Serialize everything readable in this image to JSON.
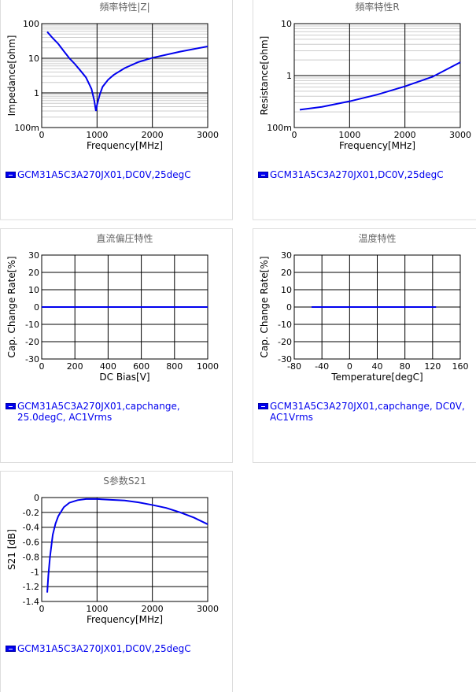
{
  "chart_data": [
    {
      "type": "line",
      "title": "頻率特性|Z|",
      "xlabel": "Frequency[MHz]",
      "ylabel": "Impedance[ohm]",
      "ylog": true,
      "grid": true,
      "xlim": [
        0,
        3000
      ],
      "xticks": [
        0,
        1000,
        2000,
        3000
      ],
      "ylim": [
        0.1,
        100
      ],
      "yticks": [
        {
          "value": 0.1,
          "label": "100m"
        },
        1,
        10,
        100
      ],
      "minor_yticks": [
        0.2,
        0.3,
        0.4,
        0.5,
        0.6,
        0.7,
        0.8,
        0.9,
        2,
        3,
        4,
        5,
        6,
        7,
        8,
        9,
        20,
        30,
        40,
        50,
        60,
        70,
        80,
        90
      ],
      "x": [
        100,
        200,
        300,
        400,
        500,
        600,
        700,
        800,
        900,
        950,
        980,
        1000,
        1050,
        1100,
        1200,
        1300,
        1500,
        1750,
        2000,
        2500,
        3000
      ],
      "series": [
        {
          "name": "GCM31A5C3A270JX01,DC0V,25degC",
          "color": "#0000ee",
          "values": [
            58,
            38,
            26,
            16,
            10,
            6.8,
            4.4,
            2.8,
            1.3,
            0.6,
            0.3,
            0.45,
            0.9,
            1.5,
            2.4,
            3.3,
            5.2,
            7.8,
            10.3,
            15.5,
            22
          ]
        }
      ]
    },
    {
      "type": "line",
      "title": "頻率特性R",
      "xlabel": "Frequency[MHz]",
      "ylabel": "Resistance[ohm]",
      "ylog": true,
      "grid": true,
      "xlim": [
        0,
        3000
      ],
      "xticks": [
        0,
        1000,
        2000,
        3000
      ],
      "ylim": [
        0.1,
        10
      ],
      "yticks": [
        {
          "value": 0.1,
          "label": "100m"
        },
        1,
        10
      ],
      "minor_yticks": [
        0.2,
        0.3,
        0.4,
        0.5,
        0.6,
        0.7,
        0.8,
        0.9,
        2,
        3,
        4,
        5,
        6,
        7,
        8,
        9
      ],
      "x": [
        100,
        500,
        1000,
        1500,
        2000,
        2500,
        3000
      ],
      "series": [
        {
          "name": "GCM31A5C3A270JX01,DC0V,25degC",
          "color": "#0000ee",
          "values": [
            0.22,
            0.25,
            0.32,
            0.43,
            0.62,
            0.95,
            1.8
          ]
        }
      ]
    },
    {
      "type": "line",
      "title": "直流偏圧特性",
      "xlabel": "DC Bias[V]",
      "ylabel": "Cap. Change Rate[%]",
      "ylog": false,
      "grid": true,
      "xlim": [
        0,
        1000
      ],
      "xticks": [
        0,
        200,
        400,
        600,
        800,
        1000
      ],
      "ylim": [
        -30,
        30
      ],
      "yticks": [
        -30,
        -20,
        -10,
        0,
        10,
        20,
        30
      ],
      "minor_yticks": [],
      "x": [
        0,
        1000
      ],
      "series": [
        {
          "name": "GCM31A5C3A270JX01,capchange, 25.0degC, AC1Vrms",
          "color": "#0000ee",
          "values": [
            0,
            0
          ]
        }
      ]
    },
    {
      "type": "line",
      "title": "温度特性",
      "xlabel": "Temperature[degC]",
      "ylabel": "Cap. Change Rate[%]",
      "ylog": false,
      "grid": true,
      "xlim": [
        -80,
        160
      ],
      "xticks": [
        -80,
        -40,
        0,
        40,
        80,
        120,
        160
      ],
      "ylim": [
        -30,
        30
      ],
      "yticks": [
        -30,
        -20,
        -10,
        0,
        10,
        20,
        30
      ],
      "minor_yticks": [],
      "x": [
        -55,
        125
      ],
      "series": [
        {
          "name": "GCM31A5C3A270JX01,capchange, DC0V, AC1Vrms",
          "color": "#0000ee",
          "values": [
            0,
            0
          ]
        }
      ]
    },
    {
      "type": "line",
      "title": "S参数S21",
      "xlabel": "Frequency[MHz]",
      "ylabel": "S21 [dB]",
      "ylog": false,
      "grid": true,
      "xlim": [
        0,
        3000
      ],
      "xticks": [
        0,
        1000,
        2000,
        3000
      ],
      "ylim": [
        -1.4,
        0
      ],
      "yticks": [
        -1.4,
        -1.2,
        -1,
        -0.8,
        -0.6,
        -0.4,
        -0.2,
        0
      ],
      "minor_yticks": [],
      "x": [
        100,
        120,
        150,
        200,
        250,
        300,
        400,
        500,
        650,
        800,
        1000,
        1250,
        1500,
        1750,
        2000,
        2250,
        2500,
        2750,
        3000
      ],
      "series": [
        {
          "name": "GCM31A5C3A270JX01,DC0V,25degC",
          "color": "#0000ee",
          "values": [
            -1.28,
            -1.05,
            -0.8,
            -0.5,
            -0.35,
            -0.25,
            -0.13,
            -0.07,
            -0.035,
            -0.02,
            -0.02,
            -0.03,
            -0.04,
            -0.065,
            -0.1,
            -0.14,
            -0.2,
            -0.27,
            -0.36
          ]
        }
      ]
    }
  ]
}
